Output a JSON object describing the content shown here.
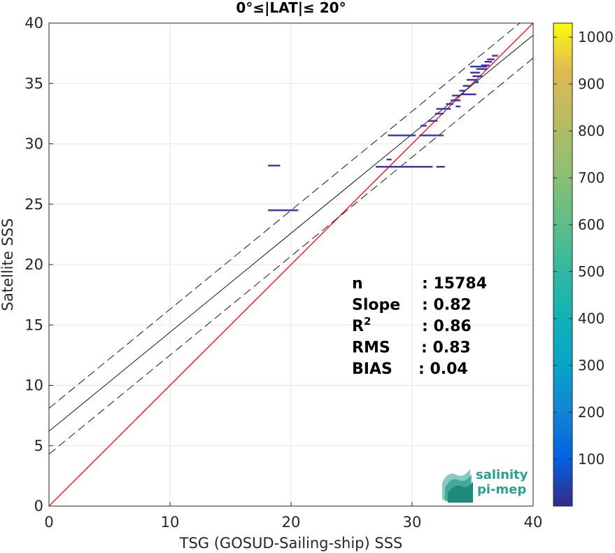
{
  "chart_data": {
    "type": "scatter",
    "title": "0°≤|LAT|≤ 20°",
    "xlabel": "TSG (GOSUD-Sailing-ship) SSS",
    "ylabel": "Satellite SSS",
    "xlim": [
      0,
      40
    ],
    "ylim": [
      0,
      40
    ],
    "xticks": [
      0,
      10,
      20,
      30,
      40
    ],
    "yticks": [
      0,
      5,
      10,
      15,
      20,
      25,
      30,
      35,
      40
    ],
    "grid": true,
    "colorbar": {
      "colormap": "parula",
      "min": 0,
      "max": 1030,
      "ticks": [
        100,
        200,
        300,
        400,
        500,
        600,
        700,
        800,
        900,
        1000
      ]
    },
    "lines": [
      {
        "name": "identity",
        "color": "#ff0000",
        "style": "solid",
        "intercept": 0,
        "slope": 1
      },
      {
        "name": "fit",
        "color": "#000000",
        "style": "solid",
        "intercept": 6.2,
        "slope": 0.82
      },
      {
        "name": "fit-upper",
        "color": "#000000",
        "style": "dashed",
        "intercept": 8.1,
        "slope": 0.82
      },
      {
        "name": "fit-lower",
        "color": "#000000",
        "style": "dashed",
        "intercept": 4.3,
        "slope": 0.82
      }
    ],
    "points": [
      {
        "x": 18.1,
        "x2": 19.1,
        "y": 28.2
      },
      {
        "x": 18.1,
        "x2": 20.6,
        "y": 24.5
      },
      {
        "x": 27.0,
        "x2": 30.0,
        "y": 28.1
      },
      {
        "x": 30.0,
        "x2": 31.7,
        "y": 28.1
      },
      {
        "x": 32.0,
        "x2": 32.7,
        "y": 28.1
      },
      {
        "x": 27.9,
        "x2": 28.3,
        "y": 28.7
      },
      {
        "x": 28.0,
        "x2": 30.3,
        "y": 30.7
      },
      {
        "x": 30.6,
        "x2": 32.6,
        "y": 30.7
      },
      {
        "x": 30.7,
        "x2": 31.2,
        "y": 31.5
      },
      {
        "x": 31.3,
        "x2": 32.1,
        "y": 31.9
      },
      {
        "x": 31.9,
        "x2": 32.6,
        "y": 32.5
      },
      {
        "x": 32.0,
        "x2": 33.2,
        "y": 32.9
      },
      {
        "x": 32.8,
        "x2": 33.4,
        "y": 33.3
      },
      {
        "x": 33.2,
        "x2": 34.0,
        "y": 33.6
      },
      {
        "x": 33.3,
        "x2": 33.9,
        "y": 34.0
      },
      {
        "x": 34.0,
        "x2": 35.3,
        "y": 34.1
      },
      {
        "x": 33.9,
        "x2": 34.4,
        "y": 34.4
      },
      {
        "x": 34.2,
        "x2": 34.8,
        "y": 34.8
      },
      {
        "x": 34.5,
        "x2": 35.4,
        "y": 35.3
      },
      {
        "x": 35.0,
        "x2": 35.8,
        "y": 35.6
      },
      {
        "x": 34.8,
        "x2": 35.6,
        "y": 35.9
      },
      {
        "x": 35.3,
        "x2": 36.2,
        "y": 36.2
      },
      {
        "x": 35.7,
        "x2": 36.4,
        "y": 36.5
      },
      {
        "x": 36.0,
        "x2": 36.6,
        "y": 36.8
      },
      {
        "x": 36.2,
        "x2": 36.8,
        "y": 37.0
      },
      {
        "x": 36.6,
        "x2": 37.1,
        "y": 37.3
      },
      {
        "x": 34.8,
        "x2": 36.2,
        "y": 36.4
      },
      {
        "x": 35.1,
        "x2": 35.5,
        "y": 35.1
      },
      {
        "x": 33.6,
        "x2": 34.0,
        "y": 33.1
      }
    ],
    "stats": [
      {
        "label": "n",
        "value": ": 15784"
      },
      {
        "label": "Slope",
        "value": ": 0.82"
      },
      {
        "label": "R",
        "sup": "2",
        "value": ": 0.86"
      },
      {
        "label": "RMS",
        "value": ": 0.83"
      },
      {
        "label": "BIAS",
        "value": ": 0.04"
      }
    ]
  },
  "logo": {
    "line1": "salinity",
    "line2": "pi-mep"
  }
}
